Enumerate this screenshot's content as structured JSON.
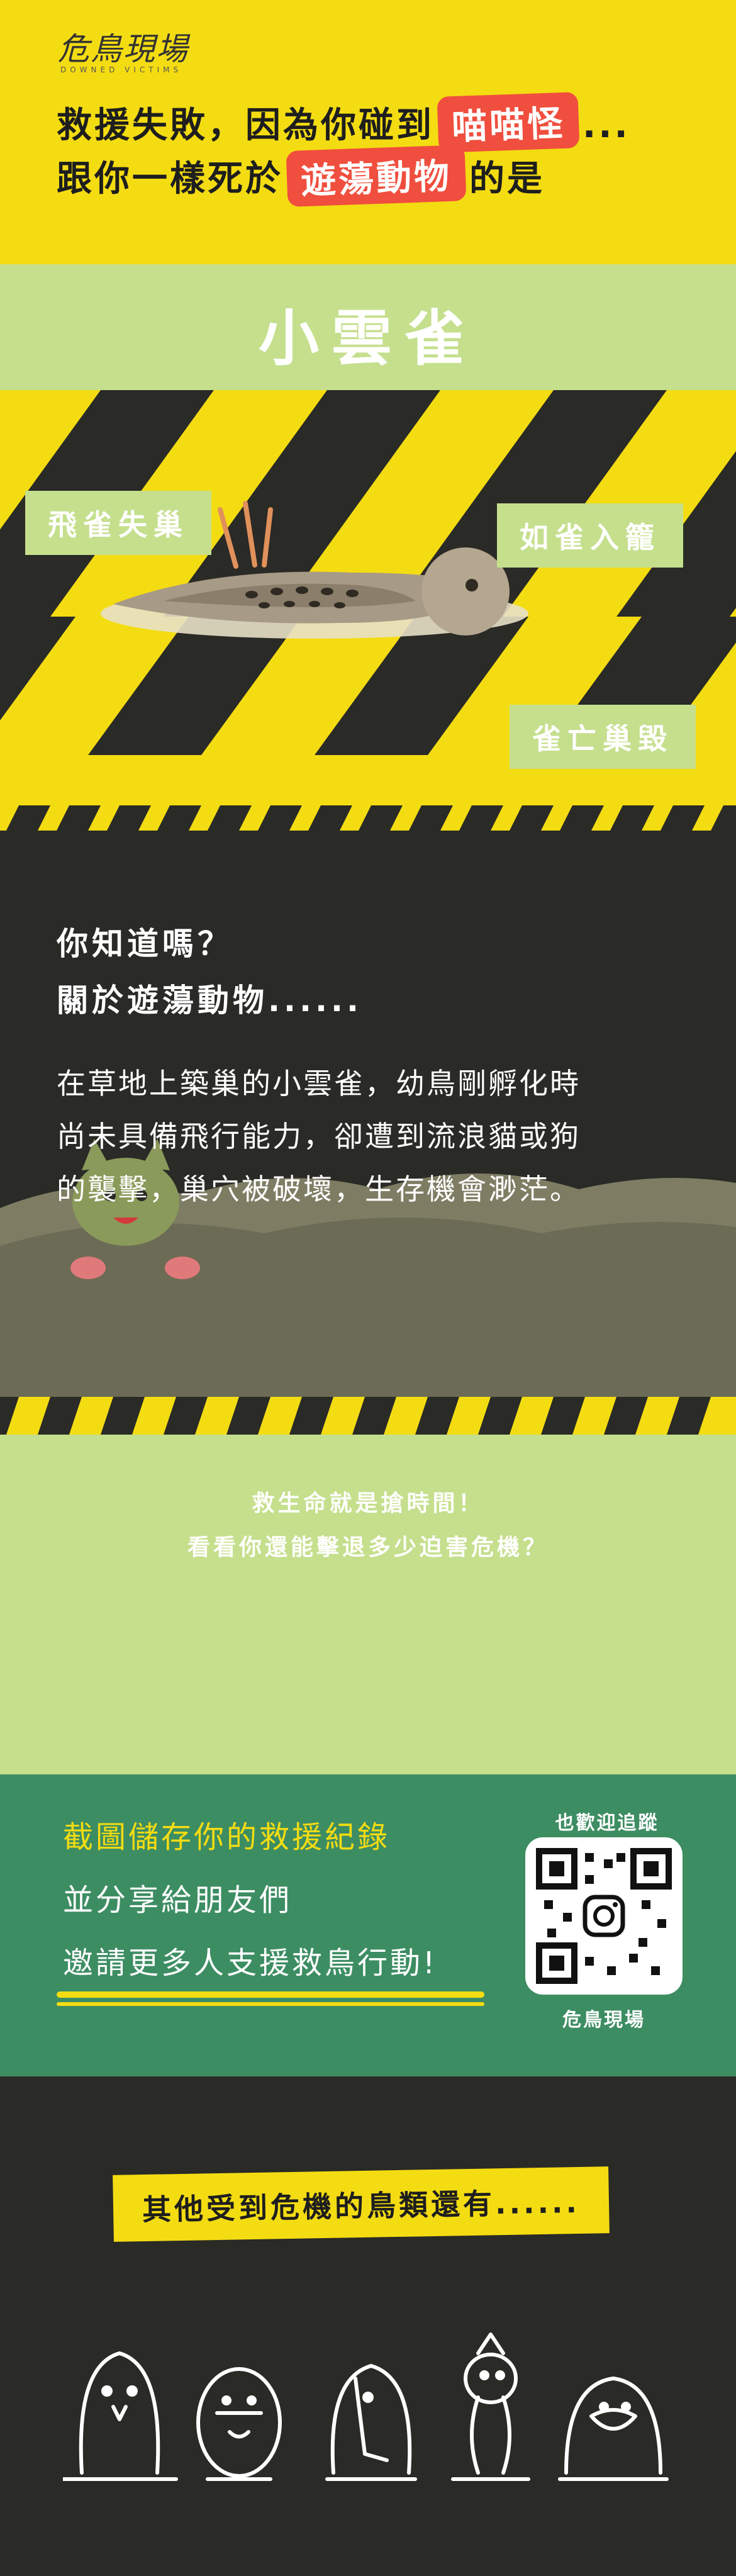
{
  "header": {
    "logo_title": "危鳥現場",
    "logo_subtitle": "DOWNED VICTIMS",
    "line1_before": "救援失敗，因為你碰到",
    "line1_tag": "喵喵怪",
    "line1_after": "...",
    "line2_before": "跟你一樣死於",
    "line2_tag": "遊蕩動物",
    "line2_after": "的是"
  },
  "bird_name": "小雲雀",
  "labels": {
    "left": "飛雀失巢",
    "right_top": "如雀入籠",
    "right_bottom": "雀亡巢毀"
  },
  "info": {
    "question_line1": "你知道嗎？",
    "question_line2": "關於遊蕩動物......",
    "paragraph_line1": "在草地上築巢的小雲雀，幼鳥剛孵化時",
    "paragraph_line2": "尚未具備飛行能力，卻遭到流浪貓或狗",
    "paragraph_line3": "的襲擊，巢穴被破壞，生存機會渺茫。"
  },
  "middle": {
    "line1": "救生命就是搶時間！",
    "line2": "看看你還能擊退多少迫害危機？"
  },
  "share": {
    "line1": "截圖儲存你的救援紀錄",
    "line2": "並分享給朋友們",
    "line3": "邀請更多人支援救鳥行動!",
    "follow_label": "也歡迎追蹤",
    "qr_caption": "危鳥現場"
  },
  "other": {
    "label": "其他受到危機的鳥類還有......"
  },
  "colors": {
    "yellow": "#f4dc12",
    "green_light": "#c5df8d",
    "green_dark": "#3d8d63",
    "dark": "#2a2a26",
    "red_tag": "#f04e3e"
  }
}
